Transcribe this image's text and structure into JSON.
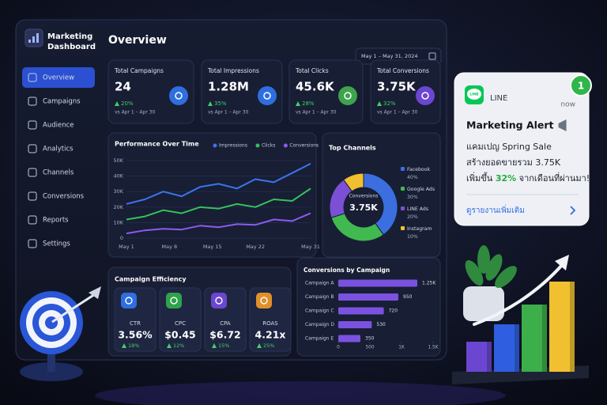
{
  "sidebar": {
    "brand": [
      "Marketing",
      "Dashboard"
    ],
    "nav": [
      "Overview",
      "Campaigns",
      "Audience",
      "Analytics",
      "Channels",
      "Conversions",
      "Reports",
      "Settings"
    ]
  },
  "header": {
    "title": "Overview",
    "date_range": "May 1 – May 31, 2024"
  },
  "kpis": [
    {
      "label": "Total Campaigns",
      "value": "24",
      "change": "20%",
      "compare": "vs Apr 1 – Apr 30"
    },
    {
      "label": "Total Impressions",
      "value": "1.28M",
      "change": "35%",
      "compare": "vs Apr 1 – Apr 30"
    },
    {
      "label": "Total Clicks",
      "value": "45.6K",
      "change": "28%",
      "compare": "vs Apr 1 – Apr 30"
    },
    {
      "label": "Total Conversions",
      "value": "3.75K",
      "change": "32%",
      "compare": "vs Apr 1 – Apr 30"
    }
  ],
  "efficiency": {
    "title": "Campaign Efficiency",
    "metrics": [
      {
        "label": "CTR",
        "value": "3.56%",
        "change": "18%"
      },
      {
        "label": "CPC",
        "value": "$0.45",
        "change": "12%"
      },
      {
        "label": "CPA",
        "value": "$6.72",
        "change": "15%"
      },
      {
        "label": "ROAS",
        "value": "4.21x",
        "change": "25%"
      }
    ]
  },
  "notification": {
    "logo_text": "LINE",
    "app": "LINE",
    "time": "now",
    "badge": "1",
    "title": "Marketing Alert",
    "lines": [
      [
        "แคมเปญ Spring Sale"
      ],
      [
        "สร้างยอดขายรวม 3.75K"
      ],
      [
        "เพิ่มขึ้น ",
        "32%",
        " จากเดือนที่ผ่านมา!"
      ]
    ],
    "link": "ดูรายงานเพิ่มเติม"
  },
  "chart_data": [
    {
      "type": "line",
      "title": "Performance Over Time",
      "x": [
        1,
        4,
        7,
        10,
        13,
        16,
        19,
        22,
        25,
        28,
        31
      ],
      "xlim": [
        1,
        31
      ],
      "xticks": [
        {
          "value": 1,
          "label": "May 1"
        },
        {
          "value": 8,
          "label": "May 8"
        },
        {
          "value": 15,
          "label": "May 15"
        },
        {
          "value": 22,
          "label": "May 22"
        },
        {
          "value": 31,
          "label": "May 31"
        }
      ],
      "ylim": [
        0,
        50000
      ],
      "yticks": [
        0,
        {
          "value": 10000,
          "label": "10K"
        },
        {
          "value": 20000,
          "label": "20K"
        },
        {
          "value": 30000,
          "label": "30K"
        },
        {
          "value": 40000,
          "label": "40K"
        },
        {
          "value": 50000,
          "label": "50K"
        }
      ],
      "grid": true,
      "series": [
        {
          "name": "Impressions",
          "color": "#3b74f0",
          "values": [
            22000,
            25000,
            30000,
            27000,
            33000,
            35000,
            32000,
            38000,
            36000,
            42000,
            48000
          ]
        },
        {
          "name": "Clicks",
          "color": "#35c25a",
          "values": [
            12000,
            14000,
            18000,
            16000,
            20000,
            19000,
            22000,
            20000,
            25000,
            24000,
            32000
          ]
        },
        {
          "name": "Conversions",
          "color": "#8a5cf0",
          "values": [
            3000,
            5000,
            6000,
            5500,
            8000,
            7000,
            9000,
            8500,
            12000,
            11000,
            16000
          ]
        }
      ]
    },
    {
      "type": "pie",
      "donut": true,
      "title": "Top Channels",
      "center_label": "Conversions",
      "center_value": "3.75K",
      "categories": [
        "Facebook",
        "Google Ads",
        "LINE Ads",
        "Instagram"
      ],
      "values": [
        40,
        30,
        20,
        10
      ],
      "value_labels": [
        "40%",
        "30%",
        "20%",
        "10%"
      ],
      "colors": [
        "#3b6fe0",
        "#3fb950",
        "#7b4fd6",
        "#f0c030"
      ]
    },
    {
      "type": "bar",
      "orientation": "horizontal",
      "title": "Conversions by Campaign",
      "categories": [
        "Campaign A",
        "Campaign B",
        "Campaign C",
        "Campaign D",
        "Campaign E"
      ],
      "values": [
        1250,
        950,
        720,
        530,
        350
      ],
      "value_labels": [
        "1.25K",
        "950",
        "720",
        "530",
        "350"
      ],
      "color": "#7b52e0",
      "xlim": [
        0,
        1500
      ],
      "xticks": [
        0,
        500,
        {
          "value": 1000,
          "label": "1K"
        },
        {
          "value": 1500,
          "label": "1.5K"
        }
      ]
    }
  ]
}
